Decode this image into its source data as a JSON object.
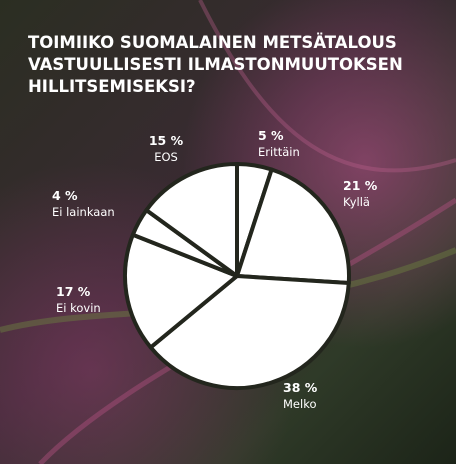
{
  "chart_data": {
    "type": "pie",
    "title": [
      "TOIMIIKO SUOMALAINEN METSÄTALOUS",
      "VASTUULLISESTI ILMASTONMUUTOKSEN",
      "HILLITSEMISEKSI?"
    ],
    "categories": [
      "Erittäin",
      "Kyllä",
      "Melko",
      "Ei kovin",
      "Ei lainkaan",
      "EOS"
    ],
    "values": [
      5,
      21,
      38,
      17,
      4,
      15
    ],
    "value_labels": [
      "5 %",
      "21 %",
      "38 %",
      "17 %",
      "4 %",
      "15 %"
    ],
    "color": "#ffffff"
  }
}
